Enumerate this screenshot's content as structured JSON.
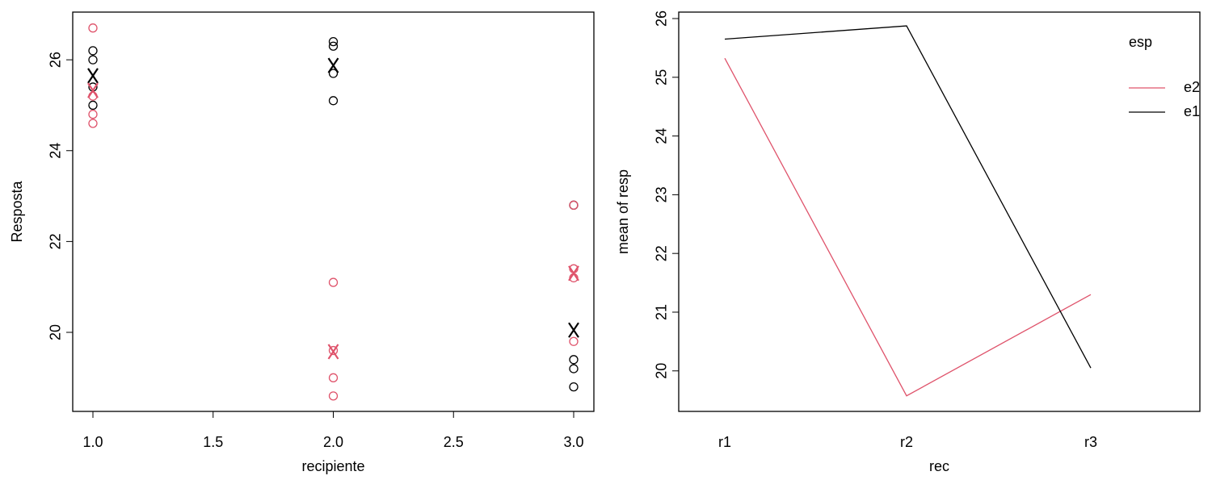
{
  "chart_data": [
    {
      "type": "scatter",
      "xlabel": "recipiente",
      "ylabel": "Resposta",
      "xlim": [
        0.916,
        3.084
      ],
      "ylim": [
        18.26,
        27.05
      ],
      "xticks": [
        {
          "value": 1,
          "label": "1.0"
        },
        1.5,
        {
          "value": 2,
          "label": "2.0"
        },
        2.5,
        {
          "value": 3,
          "label": "3.0"
        }
      ],
      "yticks": [
        20,
        22,
        24,
        26
      ],
      "series": [
        {
          "color": "#000000",
          "marker": "circle",
          "x": [
            1,
            1,
            1,
            1,
            2,
            2,
            2,
            2,
            3,
            3,
            3,
            3
          ],
          "values": [
            26.2,
            26.0,
            25.4,
            25.0,
            26.4,
            26.3,
            25.7,
            25.1,
            22.8,
            19.4,
            19.2,
            18.8
          ]
        },
        {
          "color": "#DF536B",
          "marker": "circle",
          "x": [
            1,
            1,
            1,
            1,
            2,
            2,
            2,
            2,
            3,
            3,
            3,
            3
          ],
          "values": [
            26.7,
            25.2,
            24.8,
            24.6,
            21.1,
            19.6,
            19.0,
            18.6,
            22.8,
            21.4,
            21.2,
            19.8
          ]
        },
        {
          "color": "#000000",
          "marker": "x",
          "x": [
            1,
            2,
            3
          ],
          "values": [
            25.65,
            25.875,
            20.05
          ]
        },
        {
          "color": "#DF536B",
          "marker": "x",
          "x": [
            1,
            2,
            3
          ],
          "values": [
            25.325,
            19.575,
            21.3
          ]
        }
      ]
    },
    {
      "type": "line",
      "xlabel": "rec",
      "ylabel": "mean of  resp",
      "legend_title": "esp",
      "categories": [
        "r1",
        "r2",
        "r3"
      ],
      "ylim": [
        19.31,
        26.11
      ],
      "yticks": [
        20,
        21,
        22,
        23,
        24,
        25,
        26
      ],
      "series": [
        {
          "name": "e2",
          "color": "#DF536B",
          "values": [
            25.325,
            19.575,
            21.3
          ]
        },
        {
          "name": "e1",
          "color": "#000000",
          "values": [
            25.65,
            25.875,
            20.05
          ]
        }
      ]
    }
  ]
}
